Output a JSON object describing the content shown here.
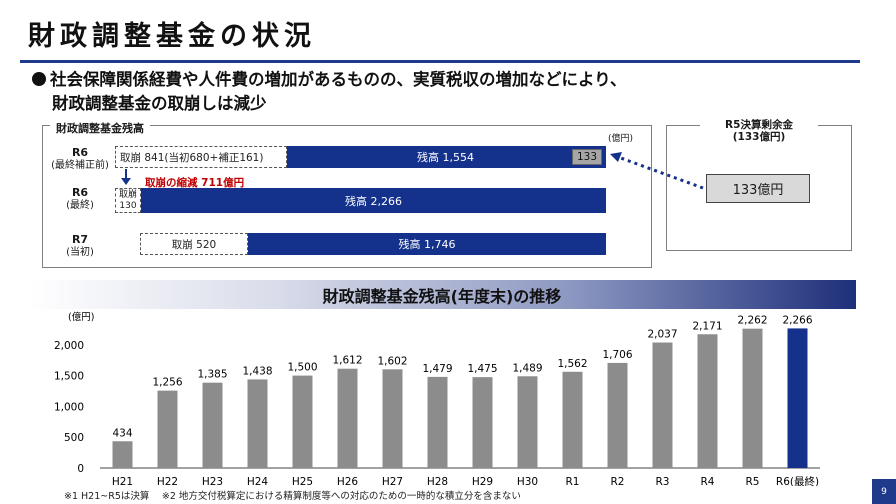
{
  "page": {
    "title": "財政調整基金の状況",
    "bullet_line1": "社会保障関係経費や人件費の増加があるものの、実質税収の増加などにより、",
    "bullet_line2": "財政調整基金の取崩しは減少",
    "page_number": "9"
  },
  "balance_panel": {
    "title": "財政調整基金残高",
    "unit": "(億円)",
    "rows": [
      {
        "label": "R6",
        "sub": "(最終補正前)",
        "withdraw_label": "取崩 841(当初680+補正161)",
        "balance_label": "残高 1,554",
        "extra_label": "133"
      },
      {
        "label": "R6",
        "sub": "(最終)",
        "withdraw_label_1": "取崩",
        "withdraw_label_2": "130",
        "balance_label": "残高 2,266"
      },
      {
        "label": "R7",
        "sub": "(当初)",
        "withdraw_label": "取崩 520",
        "balance_label": "残高 1,746"
      }
    ],
    "shrink_note": "取崩の縮減 711億円"
  },
  "surplus_panel": {
    "title_line1": "R5決算剰余金",
    "title_line2": "(133億円)",
    "value": "133億円"
  },
  "trend_banner": "財政調整基金残高(年度末)の推移",
  "chart_data": {
    "type": "bar",
    "ylabel": "(億円)",
    "ylim": [
      0,
      2500
    ],
    "yticks": [
      0,
      500,
      1000,
      1500,
      2000
    ],
    "ytick_labels": [
      "0",
      "500",
      "1,000",
      "1,500",
      "2,000"
    ],
    "grid": false,
    "categories": [
      "H21",
      "H22",
      "H23",
      "H24",
      "H25",
      "H26",
      "H27",
      "H28",
      "H29",
      "H30",
      "R1",
      "R2",
      "R3",
      "R4",
      "R5",
      "R6(最終)"
    ],
    "values": [
      434,
      1256,
      1385,
      1438,
      1500,
      1612,
      1602,
      1479,
      1475,
      1489,
      1562,
      1706,
      2037,
      2171,
      2262,
      2266
    ],
    "value_labels": [
      "434",
      "1,256",
      "1,385",
      "1,438",
      "1,500",
      "1,612",
      "1,602",
      "1,479",
      "1,475",
      "1,489",
      "1,562",
      "1,706",
      "2,037",
      "2,171",
      "2,262",
      "2,266"
    ],
    "bar_color": "#8c8c8c",
    "highlight_color": "#14328c",
    "highlight_index": 15
  },
  "footnote": "※1 H21~R5は決算　 ※2 地方交付税算定における精算制度等への対応のための一時的な積立分を含まない"
}
